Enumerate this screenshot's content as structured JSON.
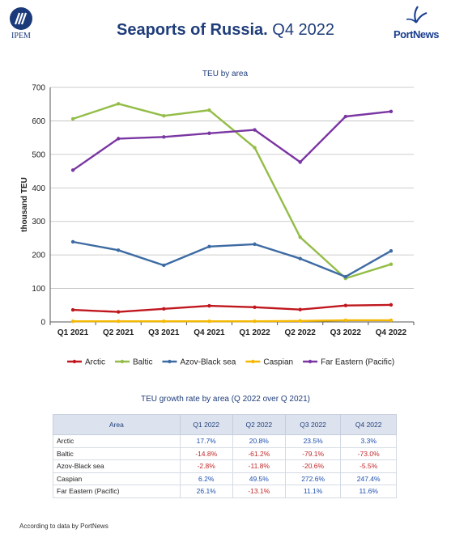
{
  "header": {
    "left_logo_text": "IPEM",
    "right_logo_text": "PortNews",
    "title_bold": "Seaports of Russia.",
    "title_rest": " Q4 2022"
  },
  "chart_data": {
    "type": "line",
    "title": "TEU by area",
    "xlabel": "",
    "ylabel": "thousand TEU",
    "categories": [
      "Q1 2021",
      "Q2 2021",
      "Q3 2021",
      "Q4 2021",
      "Q1 2022",
      "Q2 2022",
      "Q3 2022",
      "Q4 2022"
    ],
    "ylim": [
      0,
      700
    ],
    "yticks": [
      0,
      100,
      200,
      300,
      400,
      500,
      600,
      700
    ],
    "grid": true,
    "legend": "bottom",
    "series": [
      {
        "name": "Arctic",
        "color": "#c0171e",
        "values": [
          36,
          30,
          39,
          48,
          44,
          37,
          49,
          51
        ]
      },
      {
        "name": "Baltic",
        "color": "#93bd47",
        "values": [
          606,
          651,
          615,
          632,
          520,
          253,
          130,
          172
        ]
      },
      {
        "name": "Azov-Black sea",
        "color": "#3d6ba3",
        "values": [
          239,
          214,
          169,
          225,
          232,
          189,
          135,
          212
        ]
      },
      {
        "name": "Caspian",
        "color": "#f5b800",
        "values": [
          2,
          2,
          2,
          2,
          2,
          3,
          5,
          5
        ]
      },
      {
        "name": "Far Eastern (Pacific)",
        "color": "#7a36a2",
        "values": [
          453,
          547,
          552,
          563,
          573,
          477,
          613,
          628
        ]
      }
    ]
  },
  "table": {
    "title": "TEU growth rate by area (Q 2022 over Q 2021)",
    "headers": [
      "Area",
      "Q1 2022",
      "Q2 2022",
      "Q3 2022",
      "Q4 2022"
    ],
    "rows": [
      [
        "Arctic",
        "17.7%",
        "20.8%",
        "23.5%",
        "3.3%"
      ],
      [
        "Baltic",
        "-14.8%",
        "-61.2%",
        "-79.1%",
        "-73.0%"
      ],
      [
        "Azov-Black sea",
        "-2.8%",
        "-11.8%",
        "-20.6%",
        "-5.5%"
      ],
      [
        "Caspian",
        "6.2%",
        "49.5%",
        "272.6%",
        "247.4%"
      ],
      [
        "Far Eastern  (Pacific)",
        "26.1%",
        "-13.1%",
        "11.1%",
        "11.6%"
      ]
    ]
  },
  "footnote": "According  to data by PortNews"
}
